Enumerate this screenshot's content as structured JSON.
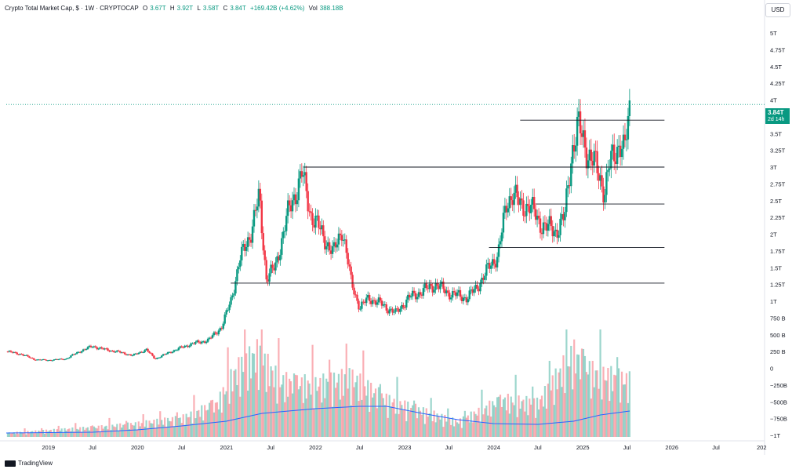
{
  "header": {
    "symbol": "Crypto Total Market Cap, $ · 1W · CRYPTOCAP",
    "open_label": "O",
    "open": "3.67T",
    "high_label": "H",
    "high": "3.92T",
    "low_label": "L",
    "low": "3.58T",
    "close_label": "C",
    "close": "3.84T",
    "change": "+169.42B (+4.62%)",
    "vol_label": "Vol",
    "vol": "388.18B"
  },
  "currency_button": "USD",
  "last_price": {
    "value": "3.84T",
    "countdown": "2d 14h"
  },
  "branding": "TradingView",
  "colors": {
    "up": "#089981",
    "down": "#f23645",
    "volume_ma": "#2962ff"
  },
  "chart_data": {
    "type": "candlestick",
    "price_axis": {
      "ticks": [
        "5T",
        "4.75T",
        "4.5T",
        "4.25T",
        "4T",
        "3.5T",
        "3.25T",
        "3T",
        "2.75T",
        "2.5T",
        "2.25T",
        "2T",
        "1.75T",
        "1.5T",
        "1.25T",
        "1T",
        "750 B",
        "500 B",
        "250 B",
        "0",
        "−250B",
        "−500B",
        "−750B",
        "−1T"
      ],
      "tick_values": [
        5,
        4.75,
        4.5,
        4.25,
        4,
        3.5,
        3.25,
        3,
        2.75,
        2.5,
        2.25,
        2,
        1.75,
        1.5,
        1.25,
        1,
        0.75,
        0.5,
        0.25,
        0,
        -0.25,
        -0.5,
        -0.75,
        -1
      ],
      "unit": "T"
    },
    "time_axis": {
      "labels": [
        "2019",
        "Jul",
        "2020",
        "Jul",
        "2021",
        "Jul",
        "2022",
        "Jul",
        "2023",
        "Jul",
        "2024",
        "Jul",
        "2025",
        "Jul",
        "2026",
        "Jul",
        "202"
      ],
      "label_times": [
        2019.0,
        2019.5,
        2020.0,
        2020.5,
        2021.0,
        2021.5,
        2022.0,
        2022.5,
        2023.0,
        2023.5,
        2024.0,
        2024.5,
        2025.0,
        2025.5,
        2026.0,
        2026.5,
        2027.0
      ]
    },
    "price_path": [
      [
        2018.53,
        0.25
      ],
      [
        2018.7,
        0.21
      ],
      [
        2018.85,
        0.13
      ],
      [
        2019.0,
        0.12
      ],
      [
        2019.2,
        0.14
      ],
      [
        2019.35,
        0.25
      ],
      [
        2019.5,
        0.33
      ],
      [
        2019.6,
        0.29
      ],
      [
        2019.8,
        0.24
      ],
      [
        2019.95,
        0.19
      ],
      [
        2020.1,
        0.28
      ],
      [
        2020.2,
        0.14
      ],
      [
        2020.4,
        0.26
      ],
      [
        2020.6,
        0.36
      ],
      [
        2020.8,
        0.42
      ],
      [
        2020.95,
        0.62
      ],
      [
        2021.05,
        1.0
      ],
      [
        2021.15,
        1.6
      ],
      [
        2021.28,
        2.05
      ],
      [
        2021.37,
        2.55
      ],
      [
        2021.45,
        1.35
      ],
      [
        2021.55,
        1.5
      ],
      [
        2021.68,
        2.25
      ],
      [
        2021.85,
        2.9
      ],
      [
        2021.95,
        2.3
      ],
      [
        2022.1,
        1.95
      ],
      [
        2022.2,
        1.7
      ],
      [
        2022.3,
        2.1
      ],
      [
        2022.4,
        1.3
      ],
      [
        2022.5,
        0.9
      ],
      [
        2022.6,
        1.05
      ],
      [
        2022.75,
        0.95
      ],
      [
        2022.9,
        0.82
      ],
      [
        2023.05,
        1.05
      ],
      [
        2023.2,
        1.15
      ],
      [
        2023.35,
        1.25
      ],
      [
        2023.5,
        1.12
      ],
      [
        2023.7,
        1.05
      ],
      [
        2023.8,
        1.18
      ],
      [
        2023.95,
        1.5
      ],
      [
        2024.05,
        1.7
      ],
      [
        2024.15,
        2.45
      ],
      [
        2024.22,
        2.65
      ],
      [
        2024.3,
        2.4
      ],
      [
        2024.4,
        2.45
      ],
      [
        2024.5,
        2.2
      ],
      [
        2024.6,
        2.1
      ],
      [
        2024.7,
        2.05
      ],
      [
        2024.8,
        2.25
      ],
      [
        2024.88,
        3.25
      ],
      [
        2024.95,
        3.6
      ],
      [
        2025.05,
        3.25
      ],
      [
        2025.15,
        3.0
      ],
      [
        2025.25,
        2.65
      ],
      [
        2025.3,
        3.0
      ],
      [
        2025.42,
        3.4
      ],
      [
        2025.47,
        3.2
      ],
      [
        2025.53,
        3.84
      ]
    ],
    "horizontal_levels": [
      {
        "price": 3.7,
        "from": 2024.3,
        "to": 2025.92
      },
      {
        "price": 3.0,
        "from": 2021.87,
        "to": 2025.92
      },
      {
        "price": 2.45,
        "from": 2024.48,
        "to": 2025.92
      },
      {
        "price": 1.8,
        "from": 2023.95,
        "to": 2025.92
      },
      {
        "price": 1.27,
        "from": 2021.05,
        "to": 2025.92
      }
    ],
    "volume_path": [
      [
        2018.53,
        0.02
      ],
      [
        2019.5,
        0.05
      ],
      [
        2020.0,
        0.07
      ],
      [
        2020.5,
        0.1
      ],
      [
        2020.9,
        0.18
      ],
      [
        2021.1,
        0.35
      ],
      [
        2021.35,
        0.45
      ],
      [
        2021.6,
        0.3
      ],
      [
        2022.0,
        0.28
      ],
      [
        2022.4,
        0.32
      ],
      [
        2022.8,
        0.2
      ],
      [
        2023.2,
        0.14
      ],
      [
        2023.6,
        0.08
      ],
      [
        2024.1,
        0.2
      ],
      [
        2024.5,
        0.18
      ],
      [
        2024.9,
        0.45
      ],
      [
        2025.1,
        0.35
      ],
      [
        2025.53,
        0.3
      ]
    ],
    "volume_ma_path": [
      [
        2018.53,
        0.05
      ],
      [
        2019.5,
        0.06
      ],
      [
        2020.0,
        0.09
      ],
      [
        2020.5,
        0.14
      ],
      [
        2021.0,
        0.2
      ],
      [
        2021.4,
        0.3
      ],
      [
        2022.0,
        0.36
      ],
      [
        2022.5,
        0.39
      ],
      [
        2022.8,
        0.39
      ],
      [
        2023.2,
        0.3
      ],
      [
        2023.6,
        0.22
      ],
      [
        2024.0,
        0.17
      ],
      [
        2024.5,
        0.16
      ],
      [
        2024.9,
        0.2
      ],
      [
        2025.2,
        0.28
      ],
      [
        2025.53,
        0.33
      ]
    ]
  }
}
